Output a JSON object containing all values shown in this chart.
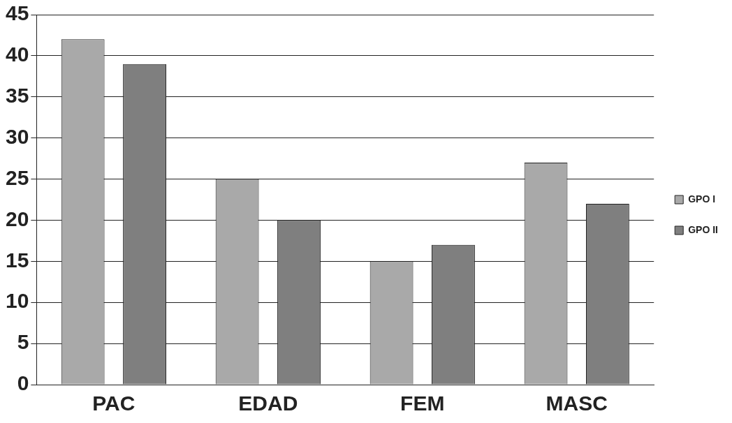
{
  "chart_data": {
    "type": "bar",
    "categories": [
      "PAC",
      "EDAD",
      "FEM",
      "MASC"
    ],
    "series": [
      {
        "name": "GPO I",
        "color": "#a9a9a9",
        "values": [
          42,
          25,
          15,
          27
        ]
      },
      {
        "name": "GPO II",
        "color": "#7f7f7f",
        "values": [
          39,
          20,
          17,
          22
        ]
      }
    ],
    "ylim": [
      0,
      45
    ],
    "yticks": [
      0,
      5,
      10,
      15,
      20,
      25,
      30,
      35,
      40,
      45
    ],
    "grid": "y",
    "legend": "right"
  }
}
